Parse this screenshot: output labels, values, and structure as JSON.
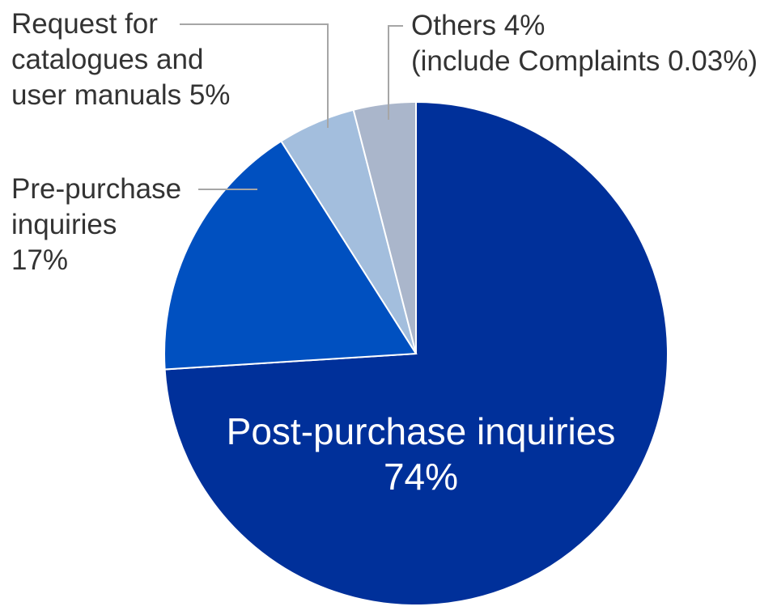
{
  "chart_data": {
    "type": "pie",
    "categories": [
      "Post-purchase inquiries",
      "Pre-purchase inquiries",
      "Request for catalogues and user manuals",
      "Others"
    ],
    "values": [
      74,
      17,
      5,
      4
    ],
    "value_labels": [
      "74%",
      "17%",
      "5%",
      "4%"
    ],
    "colors": [
      "#00309a",
      "#0050c0",
      "#a3bedd",
      "#aab6cb"
    ],
    "annotation": "(include Complaints 0.03%)"
  }
}
